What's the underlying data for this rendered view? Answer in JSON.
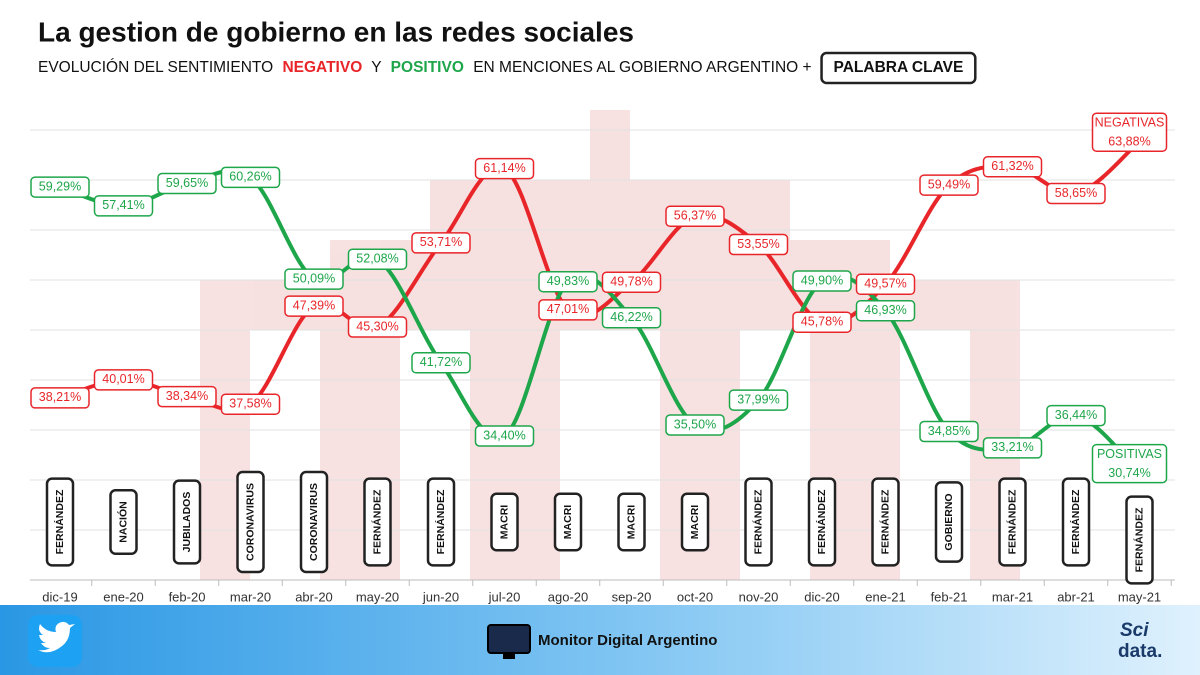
{
  "chart_data": {
    "type": "line",
    "title": "La gestion de gobierno en las redes sociales",
    "subtitle": [
      "EVOLUCIÓN DEL SENTIMIENTO",
      "NEGATIVO",
      "Y",
      "POSITIVO",
      "EN MENCIONES AL GOBIERNO ARGENTINO +"
    ],
    "legend_box": "PALABRA CLAVE",
    "categories": [
      "dic-19",
      "ene-20",
      "feb-20",
      "mar-20",
      "abr-20",
      "may-20",
      "jun-20",
      "jul-20",
      "ago-20",
      "sep-20",
      "oct-20",
      "nov-20",
      "dic-20",
      "ene-21",
      "feb-21",
      "mar-21",
      "abr-21",
      "may-21"
    ],
    "keywords": [
      "FERNÁNDEZ",
      "NACIÓN",
      "JUBILADOS",
      "CORONAVIRUS",
      "CORONAVIRUS",
      "FERNÁNDEZ",
      "FERNÁNDEZ",
      "MACRI",
      "MACRI",
      "MACRI",
      "MACRI",
      "FERNÁNDEZ",
      "FERNÁNDEZ",
      "FERNÁNDEZ",
      "GOBIERNO",
      "FERNÁNDEZ",
      "FERNÁNDEZ",
      "FERNÁNDEZ"
    ],
    "series": [
      {
        "name": "NEGATIVAS",
        "color": "#e8262a",
        "values": [
          38.21,
          40.01,
          38.34,
          37.58,
          47.39,
          45.3,
          53.71,
          61.14,
          47.01,
          49.78,
          56.37,
          53.55,
          45.78,
          49.57,
          59.49,
          61.32,
          58.65,
          63.88
        ],
        "value_labels": [
          "38,21%",
          "40,01%",
          "38,34%",
          "37,58%",
          "47,39%",
          "45,30%",
          "53,71%",
          "61,14%",
          "47,01%",
          "49,78%",
          "56,37%",
          "53,55%",
          "45,78%",
          "49,57%",
          "59,49%",
          "61,32%",
          "58,65%",
          "63,88%"
        ]
      },
      {
        "name": "POSITIVAS",
        "color": "#1ea64a",
        "values": [
          59.29,
          57.41,
          59.65,
          60.26,
          50.09,
          52.08,
          41.72,
          34.4,
          49.83,
          46.22,
          35.5,
          37.99,
          49.9,
          46.93,
          34.85,
          33.21,
          36.44,
          30.74
        ],
        "value_labels": [
          "59,29%",
          "57,41%",
          "59,65%",
          "60,26%",
          "50,09%",
          "52,08%",
          "41,72%",
          "34,40%",
          "49,83%",
          "46,22%",
          "35,50%",
          "37,99%",
          "49,90%",
          "46,93%",
          "34,85%",
          "33,21%",
          "36,44%",
          "30,74%"
        ]
      }
    ],
    "ylim": [
      20,
      65
    ],
    "yticks": [
      20,
      25,
      30,
      35,
      40,
      45,
      50,
      55,
      60,
      65
    ],
    "grid": true,
    "footer": {
      "brand": "Monitor Digital Argentino",
      "logo_top": "Sci",
      "logo_bottom": "data."
    }
  }
}
